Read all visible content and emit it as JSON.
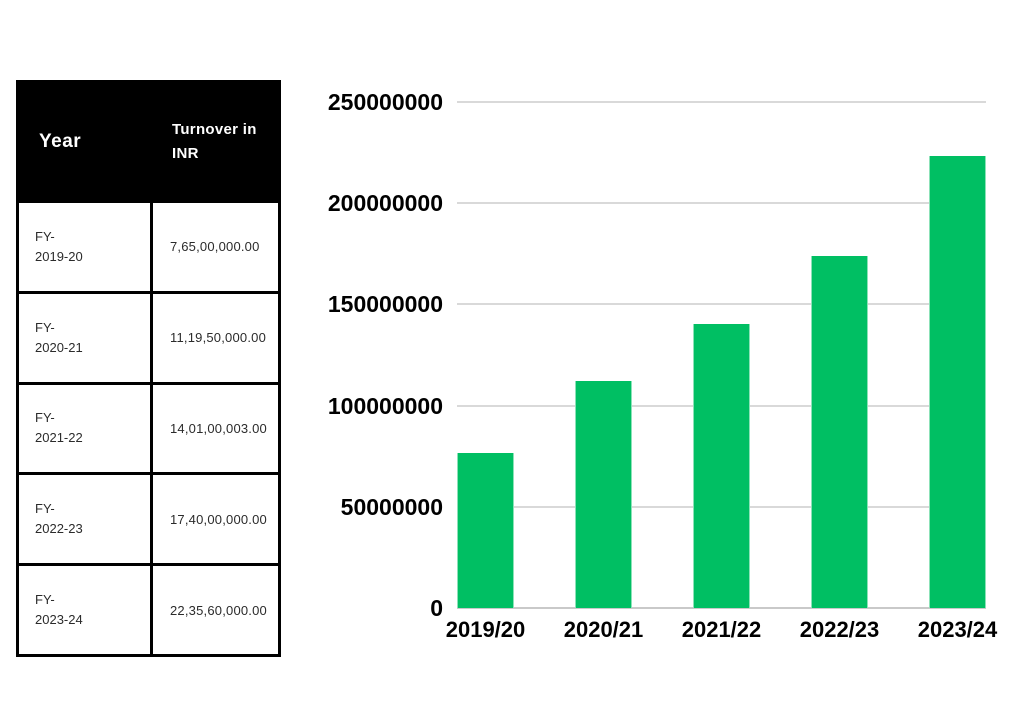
{
  "table": {
    "headers": {
      "year": "Year",
      "turnover": "Turnover in INR"
    },
    "rows": [
      {
        "year": "FY-\n2019-20",
        "turnover": "7,65,00,000.00"
      },
      {
        "year": "FY-\n2020-21",
        "turnover": "11,19,50,000.00"
      },
      {
        "year": "FY-\n2021-22",
        "turnover": "14,01,00,003.00"
      },
      {
        "year": "FY-\n2022-23",
        "turnover": "17,40,00,000.00"
      },
      {
        "year": "FY-\n2023-24",
        "turnover": "22,35,60,000.00"
      }
    ]
  },
  "chart_data": {
    "type": "bar",
    "categories": [
      "2019/20",
      "2020/21",
      "2021/22",
      "2022/23",
      "2023/24"
    ],
    "values": [
      76500000,
      111950000,
      140100003,
      174000000,
      223560000
    ],
    "title": "",
    "xlabel": "",
    "ylabel": "",
    "ylim": [
      0,
      250000000
    ],
    "yticks": [
      0,
      50000000,
      100000000,
      150000000,
      200000000,
      250000000
    ],
    "ytick_labels": [
      "0",
      "50000000",
      "100000000",
      "150000000",
      "200000000",
      "250000000"
    ],
    "grid": true,
    "legend": false,
    "bar_color": "#00bf63",
    "gridline_color": "#d9d9d9",
    "baseline_color": "#c9c9c9",
    "tick_label_color": "#000000"
  }
}
